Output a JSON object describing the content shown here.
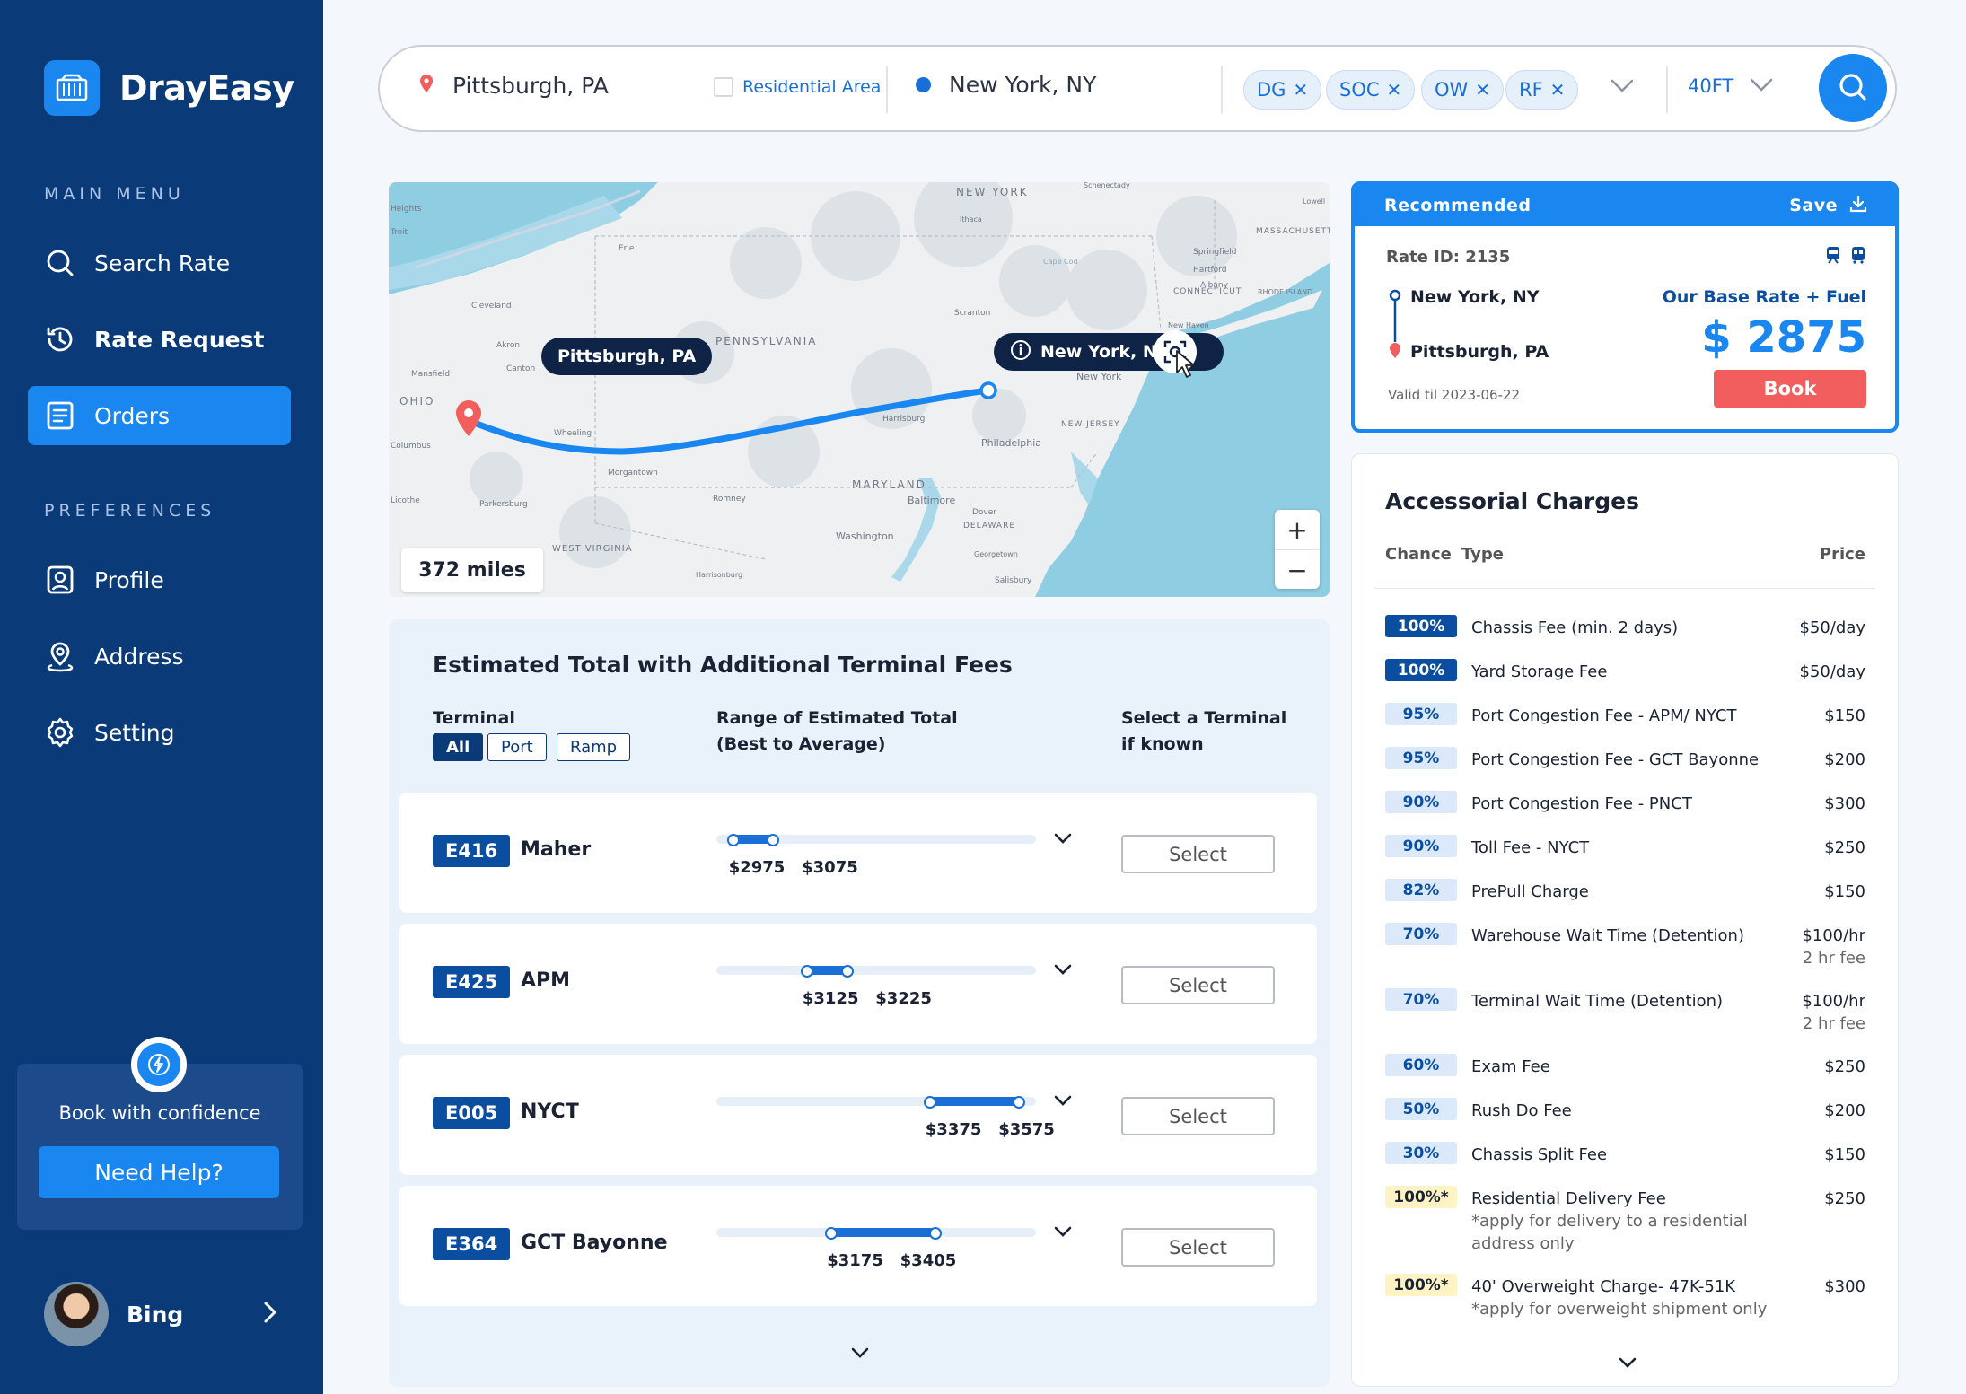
{
  "brand": {
    "name": "DrayEasy"
  },
  "sidebar": {
    "main_menu_label": "MAIN MENU",
    "preferences_label": "PREFERENCES",
    "items": [
      {
        "label": "Search Rate",
        "icon": "search-icon"
      },
      {
        "label": "Rate Request",
        "icon": "history-icon"
      },
      {
        "label": "Orders",
        "icon": "orders-icon",
        "active": true
      },
      {
        "label": "Profile",
        "icon": "profile-icon"
      },
      {
        "label": "Address",
        "icon": "location-icon"
      },
      {
        "label": "Setting",
        "icon": "gear-icon"
      }
    ],
    "help": {
      "text": "Book with confidence",
      "button": "Need Help?"
    },
    "user": {
      "name": "Bing"
    }
  },
  "search": {
    "origin": "Pittsburgh, PA",
    "residential_label": "Residential Area",
    "destination": "New York, NY",
    "tags": [
      "DG",
      "SOC",
      "OW",
      "RF"
    ],
    "container_size": "40FT"
  },
  "map": {
    "origin_label": "Pittsburgh, PA",
    "destination_label": "New York, NY",
    "distance": "372 miles",
    "place_labels": [
      "NEW YORK",
      "PENNSYLVANIA",
      "OHIO",
      "MARYLAND",
      "Washington",
      "Philadelphia",
      "Baltimore",
      "New York",
      "MASSACHUSETTS",
      "CONNECTICUT",
      "NEW JERSEY",
      "DELAWARE",
      "WEST VIRGINIA",
      "Morgantown",
      "Harrisburg",
      "Scranton",
      "Albany",
      "Hartford",
      "Springfield",
      "Akron",
      "Canton",
      "Cleveland",
      "Erie",
      "Mansfield",
      "Wheeling",
      "Romney",
      "Dover",
      "Salisbury",
      "Parkersburg",
      "Harrisonburg",
      "Georgetown",
      "New Haven",
      "Schenectady",
      "Lowell",
      "Ithaca",
      "Cape Cod",
      "Heights",
      "Troit",
      "Columbus",
      "Licothe",
      "RHODE ISLAND"
    ]
  },
  "estimate": {
    "title": "Estimated Total with Additional Terminal Fees",
    "col_terminal": "Terminal",
    "col_range": "Range of Estimated Total\n(Best to Average)",
    "col_select": "Select a Terminal\nif known",
    "filters": [
      "All",
      "Port",
      "Ramp"
    ],
    "select_label": "Select",
    "rows": [
      {
        "code": "E416",
        "name": "Maher",
        "low": "$2975",
        "high": "$3075",
        "low_value": 2975,
        "high_value": 3075
      },
      {
        "code": "E425",
        "name": "APM",
        "low": "$3125",
        "high": "$3225",
        "low_value": 3125,
        "high_value": 3225
      },
      {
        "code": "E005",
        "name": "NYCT",
        "low": "$3375",
        "high": "$3575",
        "low_value": 3375,
        "high_value": 3575
      },
      {
        "code": "E364",
        "name": "GCT Bayonne",
        "low": "$3175",
        "high": "$3405",
        "low_value": 3175,
        "high_value": 3405
      }
    ]
  },
  "recommended": {
    "header": "Recommended",
    "save_label": "Save",
    "rate_id": "Rate ID: 2135",
    "from": "New York, NY",
    "to": "Pittsburgh, PA",
    "valid": "Valid til 2023-06-22",
    "base_label": "Our Base Rate + Fuel",
    "price": "$ 2875",
    "book_label": "Book"
  },
  "accessorial": {
    "title": "Accessorial Charges",
    "col_chance": "Chance",
    "col_type": "Type",
    "col_price": "Price",
    "rows": [
      {
        "chance": "100%",
        "type": "Chassis Fee (min. 2 days)",
        "price": "$50/day",
        "style": "dark"
      },
      {
        "chance": "100%",
        "type": "Yard Storage Fee",
        "price": "$50/day",
        "style": "dark"
      },
      {
        "chance": "95%",
        "type": "Port Congestion Fee - APM/ NYCT",
        "price": "$150",
        "style": "light"
      },
      {
        "chance": "95%",
        "type": "Port Congestion Fee - GCT Bayonne",
        "price": "$200",
        "style": "light"
      },
      {
        "chance": "90%",
        "type": "Port Congestion Fee - PNCT",
        "price": "$300",
        "style": "light"
      },
      {
        "chance": "90%",
        "type": "Toll Fee - NYCT",
        "price": "$250",
        "style": "light"
      },
      {
        "chance": "82%",
        "type": "PrePull Charge",
        "price": "$150",
        "style": "light"
      },
      {
        "chance": "70%",
        "type": "Warehouse Wait Time (Detention)",
        "price": "$100/hr",
        "price_note": "2 hr fee",
        "style": "light"
      },
      {
        "chance": "70%",
        "type": "Terminal Wait Time (Detention)",
        "price": "$100/hr",
        "price_note": "2 hr fee",
        "style": "light"
      },
      {
        "chance": "60%",
        "type": "Exam Fee",
        "price": "$250",
        "style": "light"
      },
      {
        "chance": "50%",
        "type": "Rush Do Fee",
        "price": "$200",
        "style": "light"
      },
      {
        "chance": "30%",
        "type": "Chassis Split Fee",
        "price": "$150",
        "style": "light"
      },
      {
        "chance": "100%*",
        "type": "Residential Delivery Fee",
        "note": "*apply for delivery to a residential address only",
        "price": "$250",
        "style": "yellow"
      },
      {
        "chance": "100%*",
        "type": "40' Overweight Charge- 47K-51K",
        "note": "*apply for overweight shipment only",
        "price": "$300",
        "style": "yellow"
      }
    ]
  },
  "colors": {
    "primary": "#1a86f0",
    "navy": "#0b3a78",
    "book": "#f25d5d"
  }
}
